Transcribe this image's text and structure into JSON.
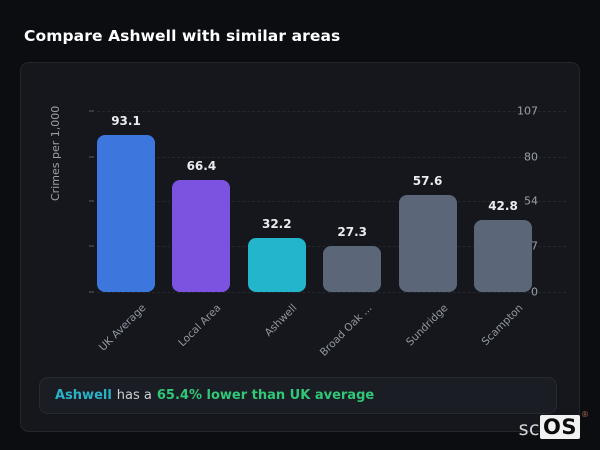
{
  "page": {
    "title": "Compare Ashwell with similar areas"
  },
  "chart_data": {
    "type": "bar",
    "categories": [
      "UK Average",
      "Local Area",
      "Ashwell",
      "Broad Oak ...",
      "Sundridge",
      "Scampton"
    ],
    "values": [
      93.1,
      66.4,
      32.2,
      27.3,
      57.6,
      42.8
    ],
    "value_labels": [
      "93.1",
      "66.4",
      "32.2",
      "27.3",
      "57.6",
      "42.8"
    ],
    "bar_colors": [
      "#3d77dd",
      "#7c52e0",
      "#22b5cb",
      "#5b6679",
      "#5b6679",
      "#5b6679"
    ],
    "title": "",
    "xlabel": "",
    "ylabel": "Crimes per 1,000",
    "yticks": [
      0,
      27,
      54,
      80,
      107
    ],
    "ylim": [
      0,
      107
    ],
    "grid": "horizontal-dashed",
    "legend": "none"
  },
  "note": {
    "subject": "Ashwell",
    "connector": "has a",
    "highlight": "65.4% lower than UK average",
    "subject_color": "#2bb2c6",
    "highlight_color": "#30c878"
  },
  "logo": {
    "prefix": "sc",
    "suffix": "OS",
    "registered_mark": "®"
  }
}
